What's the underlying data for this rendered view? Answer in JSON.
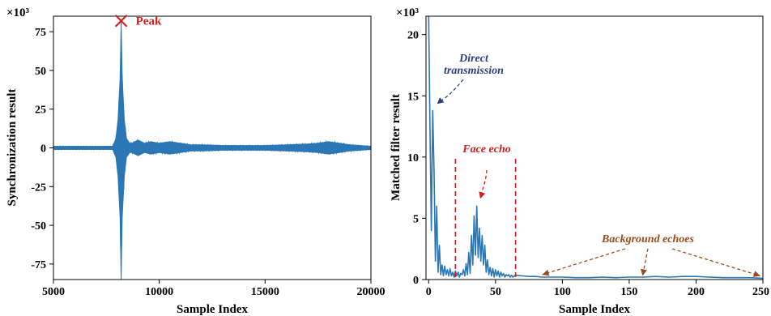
{
  "colors": {
    "line": "#2b77b5",
    "peak": "#cc1f1f",
    "direct": "#2a3f7a",
    "face": "#cc1f1f",
    "background": "#9a4a1c"
  },
  "chart_data": [
    {
      "type": "line",
      "xlabel": "Sample Index",
      "ylabel": "Synchronization result",
      "scale_label": "×10³",
      "xlim": [
        5000,
        20000
      ],
      "ylim": [
        -85,
        85
      ],
      "xticks": [
        5000,
        10000,
        15000,
        20000
      ],
      "xtick_labels": [
        "5000",
        "10000",
        "15000",
        "20000"
      ],
      "yticks": [
        75,
        50,
        25,
        0,
        -25,
        -50,
        -75
      ],
      "ytick_labels": [
        "75",
        "50",
        "25",
        "0",
        "-25",
        "-50",
        "-75"
      ],
      "peak": {
        "x": 8200,
        "y": 82,
        "label": "Peak"
      },
      "envelope": {
        "x": [
          5000,
          7800,
          7950,
          8050,
          8150,
          8200,
          8250,
          8350,
          8450,
          8600,
          8700,
          9000,
          9300,
          9600,
          10000,
          10500,
          11000,
          11500,
          12000,
          13000,
          14000,
          15000,
          16000,
          17000,
          17500,
          18000,
          18500,
          19000,
          19500,
          20000
        ],
        "upper": [
          1,
          1,
          6,
          18,
          45,
          82,
          45,
          18,
          6,
          3,
          3,
          5,
          3,
          4,
          3,
          4,
          3,
          2,
          2,
          1.5,
          1.5,
          1.5,
          2,
          2.5,
          3,
          4,
          3,
          2,
          1.5,
          1
        ],
        "lower": [
          -1,
          -1,
          -6,
          -18,
          -45,
          -85,
          -45,
          -18,
          -6,
          -3,
          -3,
          -5,
          -3,
          -4,
          -3,
          -4,
          -3,
          -2,
          -2,
          -1.5,
          -1.5,
          -1.5,
          -2,
          -2.5,
          -3,
          -4,
          -3,
          -2,
          -1.5,
          -1
        ]
      }
    },
    {
      "type": "line",
      "xlabel": "Sample Index",
      "ylabel": "Matched filter result",
      "scale_label": "×10³",
      "xlim": [
        -2,
        250
      ],
      "ylim": [
        0,
        21.5
      ],
      "xticks": [
        0,
        50,
        100,
        150,
        200,
        250
      ],
      "xtick_labels": [
        "0",
        "50",
        "100",
        "150",
        "200",
        "250"
      ],
      "yticks": [
        20,
        15,
        10,
        5,
        0
      ],
      "ytick_labels": [
        "20",
        "15",
        "10",
        "5",
        "0"
      ],
      "x": [
        0,
        1,
        2,
        3,
        4,
        5,
        6,
        7,
        8,
        9,
        10,
        11,
        12,
        13,
        14,
        15,
        16,
        17,
        18,
        19,
        20,
        21,
        22,
        23,
        24,
        25,
        26,
        27,
        28,
        29,
        30,
        31,
        32,
        33,
        34,
        35,
        36,
        37,
        38,
        39,
        40,
        41,
        42,
        43,
        44,
        45,
        46,
        47,
        48,
        49,
        50,
        51,
        52,
        53,
        54,
        55,
        56,
        57,
        58,
        59,
        60,
        61,
        62,
        63,
        64,
        65,
        70,
        75,
        80,
        85,
        90,
        95,
        100,
        110,
        120,
        130,
        140,
        150,
        160,
        170,
        180,
        190,
        200,
        210,
        220,
        230,
        240,
        250
      ],
      "y": [
        21.5,
        12,
        4,
        13.8,
        9,
        1.5,
        6,
        0.6,
        2.8,
        0.4,
        1.2,
        0.3,
        1.1,
        0.4,
        0.8,
        0.3,
        0.9,
        0.3,
        0.6,
        0.2,
        0.7,
        0.3,
        0.6,
        0.2,
        0.5,
        0.4,
        0.8,
        0.3,
        1.3,
        0.4,
        2.2,
        0.5,
        3.6,
        1.2,
        5.2,
        2,
        6,
        1.8,
        4.2,
        1.5,
        3.6,
        1.2,
        2.8,
        0.6,
        1.6,
        0.4,
        1,
        0.3,
        0.9,
        0.2,
        0.8,
        0.3,
        0.7,
        0.2,
        0.6,
        0.3,
        0.5,
        0.2,
        0.4,
        0.3,
        0.4,
        0.2,
        0.35,
        0.2,
        0.3,
        0.35,
        0.3,
        0.25,
        0.25,
        0.2,
        0.2,
        0.2,
        0.2,
        0.15,
        0.15,
        0.2,
        0.15,
        0.2,
        0.2,
        0.25,
        0.2,
        0.25,
        0.25,
        0.2,
        0.15,
        0.15,
        0.15,
        0.1
      ],
      "face_echo_window": [
        20,
        65
      ],
      "annotations": {
        "direct": "Direct transmission",
        "face": "Face echo",
        "background": "Background echoes"
      }
    }
  ]
}
